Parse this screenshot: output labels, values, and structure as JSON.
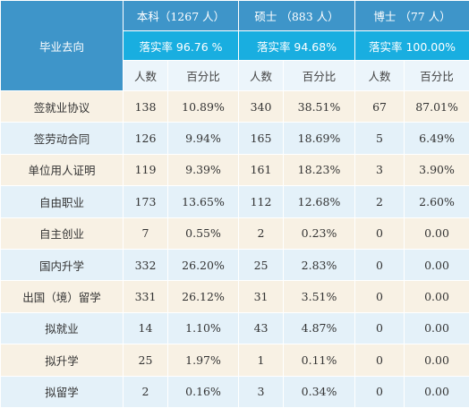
{
  "header": {
    "row_label": "毕业去向",
    "groups": [
      {
        "name": "本科（1267 人）",
        "rate": "落实率 96.76 %"
      },
      {
        "name": "硕士 （883 人）",
        "rate": "落实率 94.68%"
      },
      {
        "name": "博士 （77 人）",
        "rate": "落实率 100.00%"
      }
    ],
    "count_label": "人数",
    "pct_label": "百分比"
  },
  "rows": [
    {
      "name": "签就业协议",
      "cells": [
        "138",
        "10.89%",
        "340",
        "38.51%",
        "67",
        "87.01%"
      ]
    },
    {
      "name": "签劳动合同",
      "cells": [
        "126",
        "9.94%",
        "165",
        "18.69%",
        "5",
        "6.49%"
      ]
    },
    {
      "name": "单位用人证明",
      "cells": [
        "119",
        "9.39%",
        "161",
        "18.23%",
        "3",
        "3.90%"
      ]
    },
    {
      "name": "自由职业",
      "cells": [
        "173",
        "13.65%",
        "112",
        "12.68%",
        "2",
        "2.60%"
      ]
    },
    {
      "name": "自主创业",
      "cells": [
        "7",
        "0.55%",
        "2",
        "0.23%",
        "0",
        "0.00"
      ]
    },
    {
      "name": "国内升学",
      "cells": [
        "332",
        "26.20%",
        "25",
        "2.83%",
        "0",
        "0.00"
      ]
    },
    {
      "name": "出国（境）留学",
      "cells": [
        "331",
        "26.12%",
        "31",
        "3.51%",
        "0",
        "0.00"
      ]
    },
    {
      "name": "拟就业",
      "cells": [
        "14",
        "1.10%",
        "43",
        "4.87%",
        "0",
        "0.00"
      ]
    },
    {
      "name": "拟升学",
      "cells": [
        "25",
        "1.97%",
        "1",
        "0.11%",
        "0",
        "0.00"
      ]
    },
    {
      "name": "拟留学",
      "cells": [
        "2",
        "0.16%",
        "3",
        "0.34%",
        "0",
        "0.00"
      ]
    }
  ]
}
